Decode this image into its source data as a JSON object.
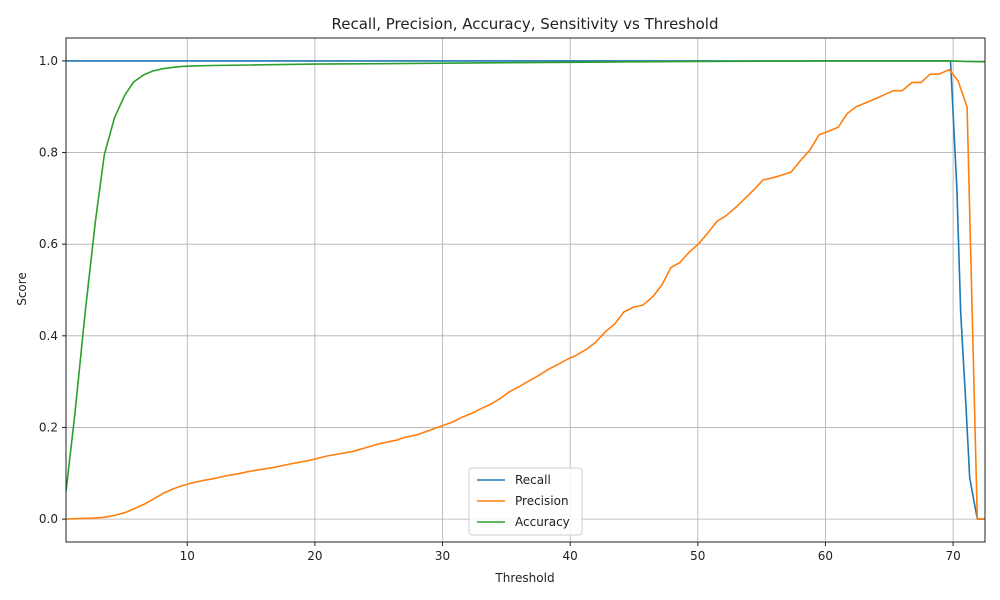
{
  "chart_data": {
    "type": "line",
    "title": "Recall, Precision, Accuracy, Sensitivity vs Threshold",
    "xlabel": "Threshold",
    "ylabel": "Score",
    "xlim": [
      0.5,
      72.5
    ],
    "ylim": [
      -0.05,
      1.05
    ],
    "xticks": [
      10,
      20,
      30,
      40,
      50,
      60,
      70
    ],
    "yticks": [
      0.0,
      0.2,
      0.4,
      0.6,
      0.8,
      1.0
    ],
    "grid": true,
    "legend_position": "bottom-center",
    "series": [
      {
        "name": "Recall",
        "color": "#1f77b4",
        "points": [
          [
            0.5,
            1.0
          ],
          [
            10,
            1.0
          ],
          [
            20,
            1.0
          ],
          [
            30,
            1.0
          ],
          [
            40,
            1.0
          ],
          [
            50,
            1.0
          ],
          [
            60,
            1.0
          ],
          [
            69.8,
            1.0
          ],
          [
            70.3,
            0.72
          ],
          [
            70.6,
            0.45
          ],
          [
            71.0,
            0.25
          ],
          [
            71.3,
            0.09
          ],
          [
            71.9,
            0.0
          ],
          [
            72.5,
            0.0
          ]
        ]
      },
      {
        "name": "Precision",
        "color": "#ff7f0e",
        "points": [
          [
            0.5,
            0.0
          ],
          [
            1.5,
            0.001
          ],
          [
            2.5,
            0.002
          ],
          [
            3.5,
            0.004
          ],
          [
            4.3,
            0.008
          ],
          [
            5.1,
            0.014
          ],
          [
            5.8,
            0.022
          ],
          [
            6.6,
            0.032
          ],
          [
            7.3,
            0.043
          ],
          [
            8.1,
            0.056
          ],
          [
            8.9,
            0.066
          ],
          [
            9.6,
            0.073
          ],
          [
            10.4,
            0.079
          ],
          [
            11.2,
            0.084
          ],
          [
            12.0,
            0.088
          ],
          [
            13.0,
            0.094
          ],
          [
            14.0,
            0.099
          ],
          [
            15.0,
            0.105
          ],
          [
            16.0,
            0.109
          ],
          [
            17.0,
            0.114
          ],
          [
            18.0,
            0.12
          ],
          [
            19.0,
            0.125
          ],
          [
            20.0,
            0.131
          ],
          [
            21.0,
            0.138
          ],
          [
            22.0,
            0.143
          ],
          [
            23.0,
            0.148
          ],
          [
            24.0,
            0.156
          ],
          [
            25.0,
            0.164
          ],
          [
            26.0,
            0.17
          ],
          [
            26.5,
            0.173
          ],
          [
            27.0,
            0.178
          ],
          [
            28.0,
            0.184
          ],
          [
            29.0,
            0.194
          ],
          [
            30.0,
            0.204
          ],
          [
            30.8,
            0.212
          ],
          [
            31.5,
            0.222
          ],
          [
            32.3,
            0.231
          ],
          [
            33.0,
            0.241
          ],
          [
            33.8,
            0.251
          ],
          [
            34.5,
            0.263
          ],
          [
            35.3,
            0.279
          ],
          [
            36.0,
            0.289
          ],
          [
            36.8,
            0.302
          ],
          [
            37.5,
            0.313
          ],
          [
            38.3,
            0.327
          ],
          [
            39.0,
            0.337
          ],
          [
            39.8,
            0.349
          ],
          [
            40.5,
            0.358
          ],
          [
            41.3,
            0.371
          ],
          [
            42.0,
            0.386
          ],
          [
            42.8,
            0.41
          ],
          [
            43.5,
            0.426
          ],
          [
            44.2,
            0.452
          ],
          [
            45.0,
            0.463
          ],
          [
            45.7,
            0.467
          ],
          [
            46.5,
            0.486
          ],
          [
            47.2,
            0.512
          ],
          [
            47.9,
            0.549
          ],
          [
            48.6,
            0.56
          ],
          [
            49.3,
            0.582
          ],
          [
            50.1,
            0.602
          ],
          [
            50.8,
            0.625
          ],
          [
            51.5,
            0.65
          ],
          [
            52.2,
            0.662
          ],
          [
            53.0,
            0.681
          ],
          [
            53.7,
            0.7
          ],
          [
            54.4,
            0.719
          ],
          [
            55.1,
            0.74
          ],
          [
            55.9,
            0.745
          ],
          [
            56.6,
            0.751
          ],
          [
            57.3,
            0.757
          ],
          [
            58.0,
            0.781
          ],
          [
            58.8,
            0.806
          ],
          [
            59.5,
            0.839
          ],
          [
            60.2,
            0.846
          ],
          [
            61.0,
            0.855
          ],
          [
            61.7,
            0.885
          ],
          [
            62.4,
            0.9
          ],
          [
            63.1,
            0.908
          ],
          [
            63.9,
            0.917
          ],
          [
            64.6,
            0.926
          ],
          [
            65.3,
            0.935
          ],
          [
            66.0,
            0.935
          ],
          [
            66.8,
            0.953
          ],
          [
            67.5,
            0.953
          ],
          [
            68.2,
            0.971
          ],
          [
            68.9,
            0.971
          ],
          [
            69.7,
            0.981
          ],
          [
            70.4,
            0.956
          ],
          [
            71.1,
            0.899
          ],
          [
            71.9,
            0.0
          ],
          [
            72.5,
            0.0
          ]
        ]
      },
      {
        "name": "Accuracy",
        "color": "#2ca02c",
        "points": [
          [
            0.5,
            0.06
          ],
          [
            1.2,
            0.23
          ],
          [
            2.0,
            0.45
          ],
          [
            2.8,
            0.65
          ],
          [
            3.5,
            0.795
          ],
          [
            4.3,
            0.876
          ],
          [
            5.1,
            0.925
          ],
          [
            5.8,
            0.954
          ],
          [
            6.6,
            0.97
          ],
          [
            7.3,
            0.978
          ],
          [
            8.1,
            0.983
          ],
          [
            8.9,
            0.986
          ],
          [
            9.6,
            0.988
          ],
          [
            10.4,
            0.989
          ],
          [
            12.0,
            0.99
          ],
          [
            15.0,
            0.991
          ],
          [
            20.0,
            0.993
          ],
          [
            25.0,
            0.994
          ],
          [
            30.0,
            0.995
          ],
          [
            35.0,
            0.996
          ],
          [
            40.0,
            0.997
          ],
          [
            45.0,
            0.998
          ],
          [
            50.0,
            0.999
          ],
          [
            60.0,
            1.0
          ],
          [
            69.8,
            1.0
          ],
          [
            71.0,
            0.999
          ],
          [
            72.5,
            0.998
          ]
        ]
      }
    ]
  }
}
